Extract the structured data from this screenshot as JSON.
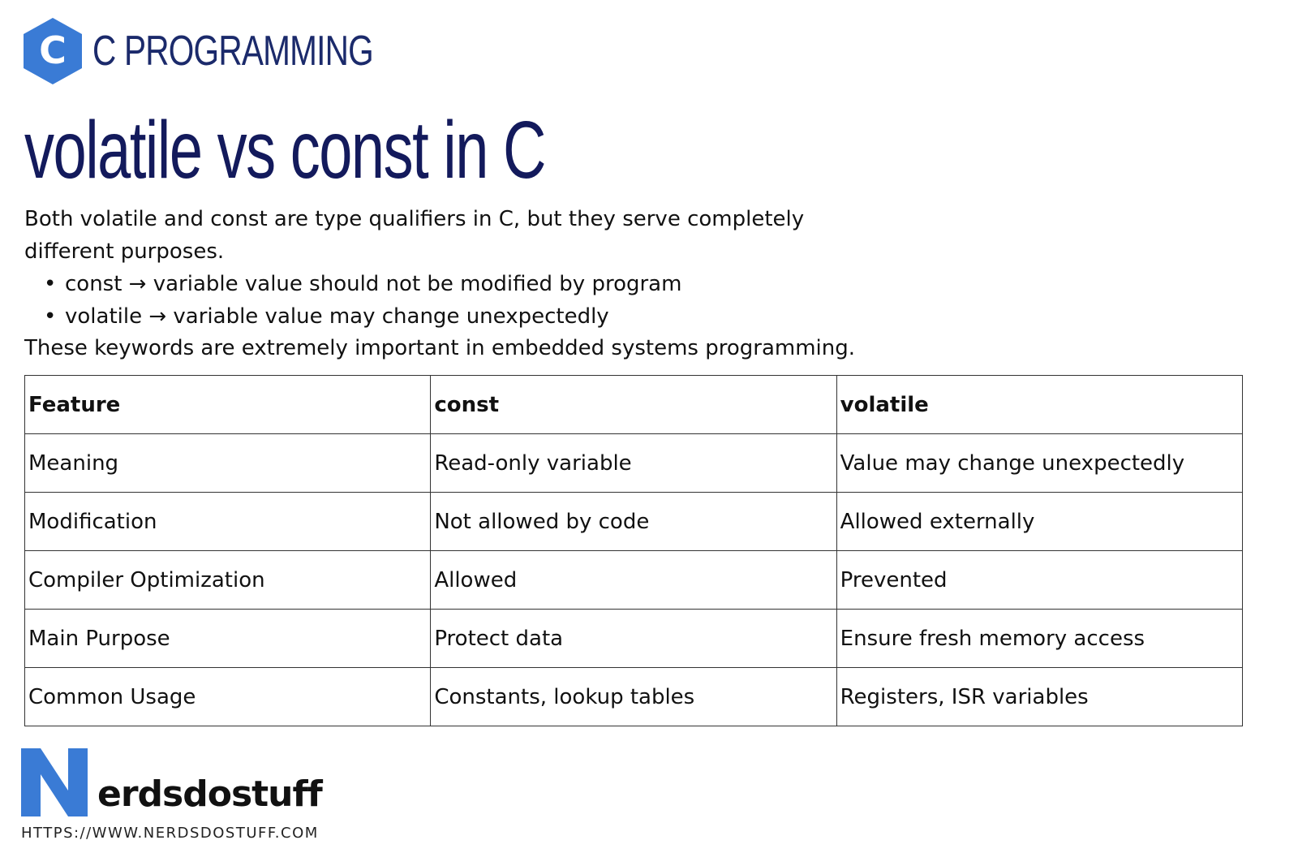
{
  "header": {
    "logo_letter": "C",
    "brand": "C PROGRAMMING"
  },
  "title": "volatile vs const in C",
  "intro": "Both volatile and const are type qualifiers in C, but they serve completely different purposes.",
  "bullets": [
    "const → variable value should not be modified by program",
    "volatile → variable value may change unexpectedly"
  ],
  "closing": "These keywords are extremely important in embedded systems programming.",
  "table": {
    "headers": [
      "Feature",
      "const",
      "volatile"
    ],
    "rows": [
      [
        "Meaning",
        "Read-only variable",
        "Value may change unexpectedly"
      ],
      [
        "Modification",
        "Not allowed by code",
        "Allowed externally"
      ],
      [
        "Compiler Optimization",
        "Allowed",
        "Prevented"
      ],
      [
        "Main Purpose",
        "Protect data",
        "Ensure fresh memory access"
      ],
      [
        "Common Usage",
        "Constants, lookup tables",
        "Registers, ISR variables"
      ]
    ]
  },
  "footer": {
    "logo_letter": "N",
    "wordmark": "erdsdostuff",
    "url": "HTTPS://WWW.NERDSDOSTUFF.COM"
  },
  "colors": {
    "accent_blue": "#3a7bd5",
    "title_navy": "#131a5c"
  }
}
